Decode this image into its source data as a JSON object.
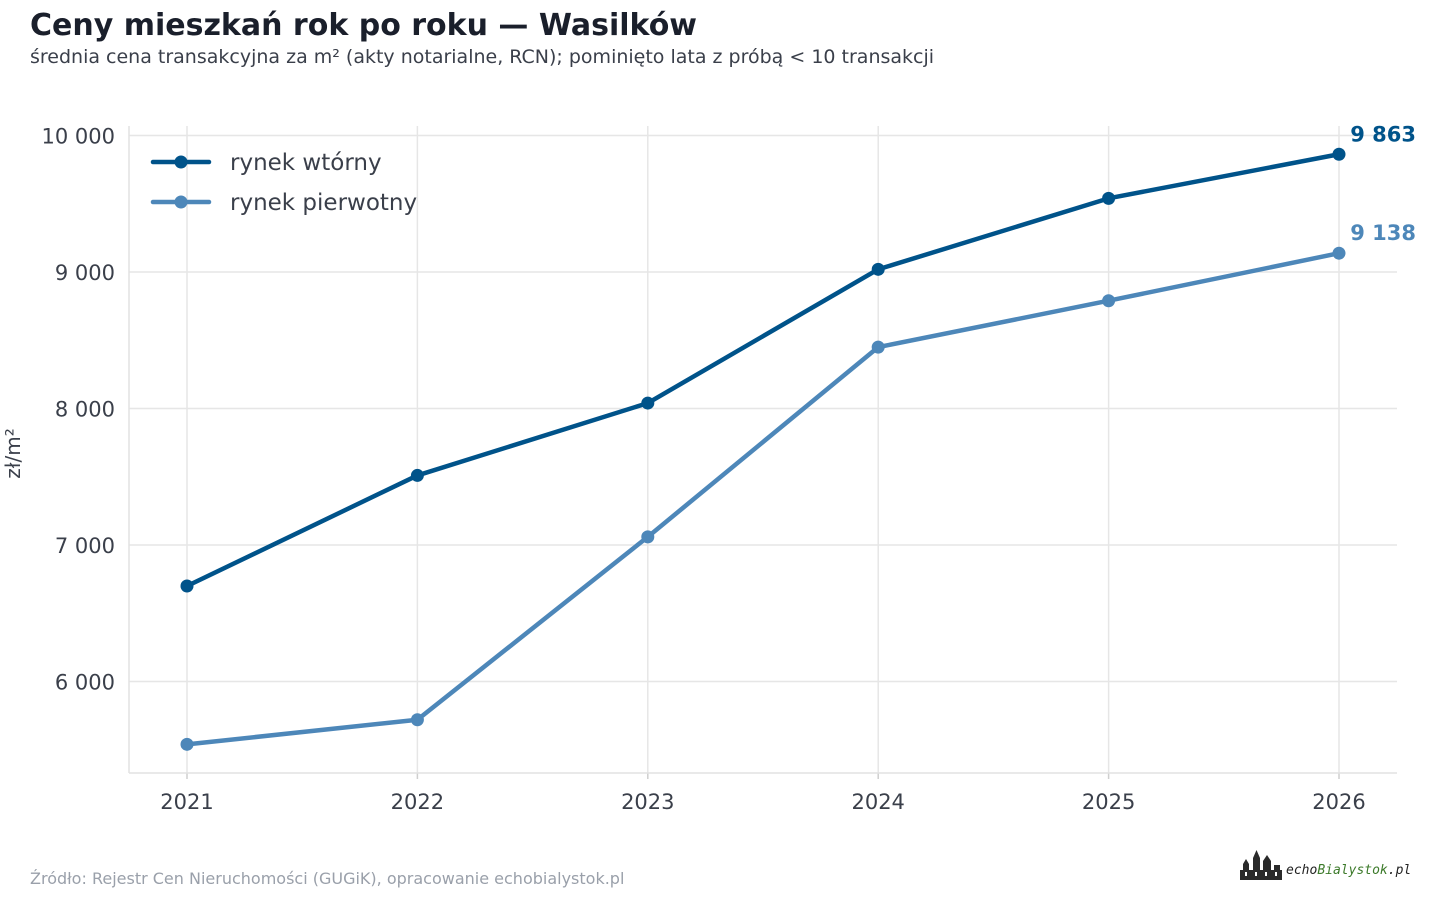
{
  "header": {
    "title": "Ceny mieszkań rok po roku — Wasilków",
    "subtitle": "średnia cena transakcyjna za m² (akty notarialne, RCN); pominięto lata z próbą < 10 transakcji"
  },
  "footer": {
    "source": "Źródło: Rejestr Cen Nieruchomości (GUGiK), opracowanie echobialystok.pl",
    "logo_part1": "echo",
    "logo_part2": "Bialystok",
    "logo_part3": ".pl"
  },
  "chart_data": {
    "type": "line",
    "x": [
      "2021",
      "2022",
      "2023",
      "2024",
      "2025",
      "2026"
    ],
    "series": [
      {
        "name": "rynek wtórny",
        "color": "#00538a",
        "values": [
          6700,
          7510,
          8040,
          9020,
          9540,
          9863
        ],
        "end_label": "9 863"
      },
      {
        "name": "rynek pierwotny",
        "color": "#4d87b9",
        "values": [
          5540,
          5720,
          7060,
          8450,
          8790,
          9138
        ],
        "end_label": "9 138"
      }
    ],
    "ylabel": "zł/m²",
    "ylim": [
      5330,
      10070
    ],
    "yticks": [
      6000,
      7000,
      8000,
      9000,
      10000
    ],
    "ytick_labels": [
      "6 000",
      "7 000",
      "8 000",
      "9 000",
      "10 000"
    ],
    "grid": true,
    "legend_position": "top-left",
    "gridline_color": "#e6e6e6"
  }
}
